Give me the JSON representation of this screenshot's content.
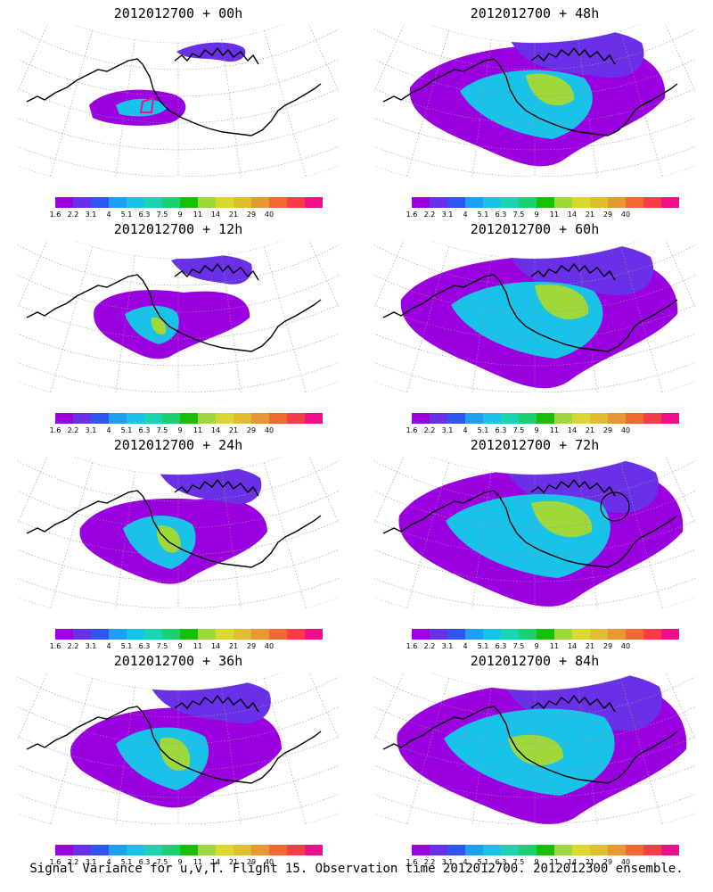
{
  "panels": [
    {
      "title": "2012012700 + 00h",
      "level": 0
    },
    {
      "title": "2012012700 + 48h",
      "level": 4
    },
    {
      "title": "2012012700 + 12h",
      "level": 1
    },
    {
      "title": "2012012700 + 60h",
      "level": 5
    },
    {
      "title": "2012012700 + 24h",
      "level": 2
    },
    {
      "title": "2012012700 + 72h",
      "level": 6
    },
    {
      "title": "2012012700 + 36h",
      "level": 3
    },
    {
      "title": "2012012700 + 84h",
      "level": 7
    }
  ],
  "colorbar": {
    "colors": [
      "#9b00e0",
      "#6a30e8",
      "#2f56f0",
      "#1e9ef5",
      "#18c2e8",
      "#1ad3b0",
      "#1ad070",
      "#18c000",
      "#9ed83a",
      "#d8d830",
      "#e0bc30",
      "#e89830",
      "#f06a30",
      "#f53c48",
      "#f0108a"
    ],
    "labels": [
      "1.6",
      "2.2",
      "3.1",
      "4",
      "5.1",
      "6.3",
      "7.5",
      "9",
      "11",
      "14",
      "21",
      "29",
      "40"
    ]
  },
  "footer": "Signal Variance for u,v,T. Flight 15. Observation time 2012012700. 2012012300 ensemble."
}
